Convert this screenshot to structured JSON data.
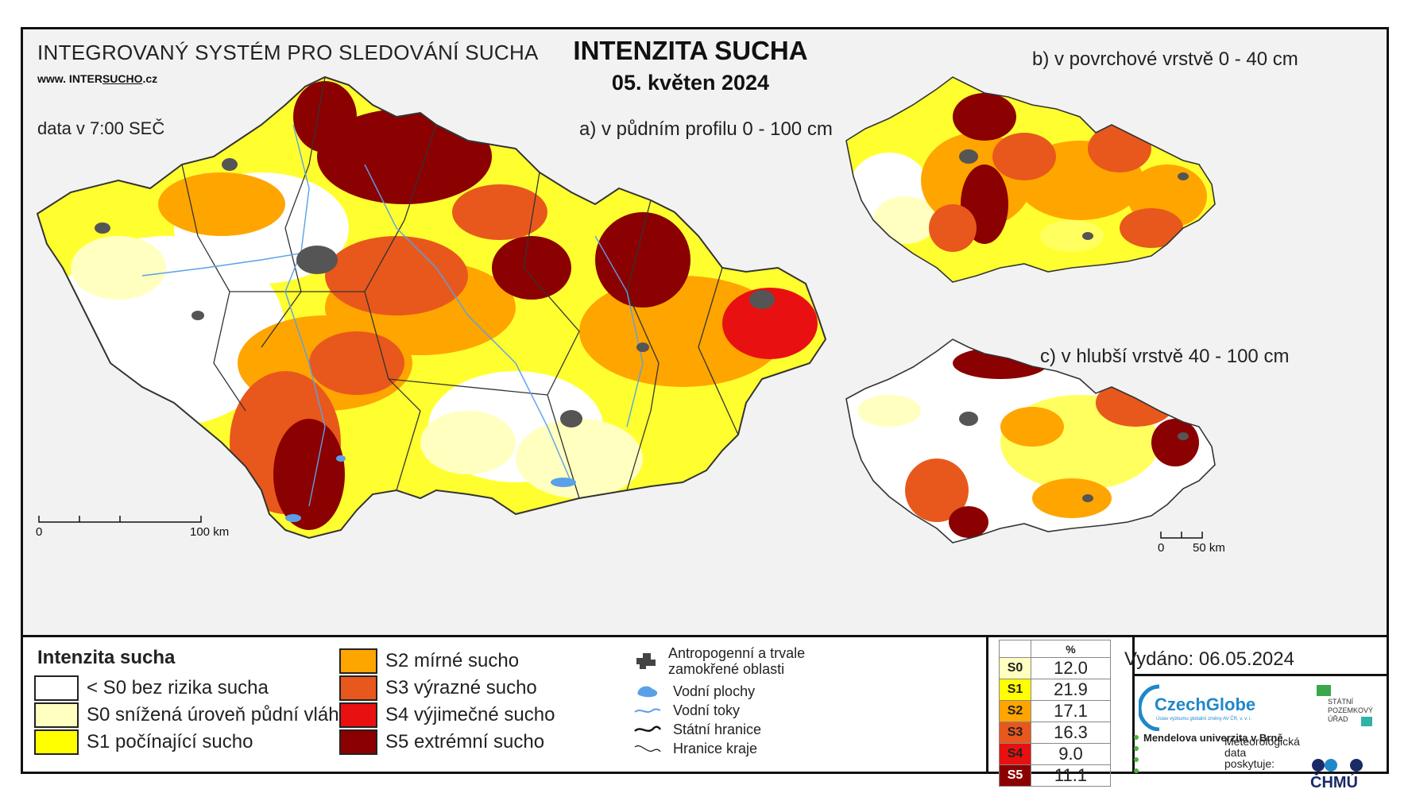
{
  "header": {
    "system_title": "INTEGROVANÝ SYSTÉM PRO SLEDOVÁNÍ SUCHA",
    "website_prefix": "www. INTER",
    "website_underlined": "SUCHO",
    "website_suffix": ".cz",
    "time_note": "data v 7:00 SEČ",
    "main_title": "INTENZITA SUCHA",
    "date": "05. květen 2024"
  },
  "panels": {
    "a": "a) v půdním profilu 0 - 100 cm",
    "b": "b) v povrchové vrstvě 0 - 40 cm",
    "c": "c) v hlubší vrstvě 40 - 100 cm"
  },
  "scales": {
    "main_start": "0",
    "main_end": "100 km",
    "small_start": "0",
    "small_end": "50 km"
  },
  "legend": {
    "title": "Intenzita sucha",
    "items": [
      {
        "label": "< S0 bez rizika sucha",
        "color": "#ffffff"
      },
      {
        "label": "S0 snížená úroveň půdní vláhy",
        "color": "#ffffc0"
      },
      {
        "label": "S1 počínající sucho",
        "color": "#ffff00"
      },
      {
        "label": "S2 mírné sucho",
        "color": "#ffa500"
      },
      {
        "label": "S3 výrazné sucho",
        "color": "#e8581c"
      },
      {
        "label": "S4 výjimečné sucho",
        "color": "#e81010"
      },
      {
        "label": "S5 extrémní sucho",
        "color": "#8b0000"
      }
    ]
  },
  "symbols": {
    "urban": "Antropogenní a trvale zamokřené oblasti",
    "water_bodies": "Vodní plochy",
    "rivers": "Vodní toky",
    "state_border": "Státní hranice",
    "region_border": "Hranice kraje"
  },
  "stats": {
    "header": "%",
    "rows": [
      {
        "code": "S0",
        "value": "12.0",
        "color": "#ffffc0"
      },
      {
        "code": "S1",
        "value": "21.9",
        "color": "#ffff00"
      },
      {
        "code": "S2",
        "value": "17.1",
        "color": "#ffa500"
      },
      {
        "code": "S3",
        "value": "16.3",
        "color": "#e8581c"
      },
      {
        "code": "S4",
        "value": "9.0",
        "color": "#e81010"
      },
      {
        "code": "S5",
        "value": "11.1",
        "color": "#8b0000"
      }
    ]
  },
  "issued": "Vydáno: 06.05.2024",
  "logos": {
    "czechglobe": "CzechGlobe",
    "czechglobe_sub": "Ústav výzkumu globální změny AV ČR, v. v. i.",
    "spu": "STÁTNÍ POZEMKOVÝ ÚŘAD",
    "mendel": "Mendelova univerzita v Brně",
    "meteo": "Meteorologická data poskytuje:",
    "chmu": "ČHMÚ"
  }
}
